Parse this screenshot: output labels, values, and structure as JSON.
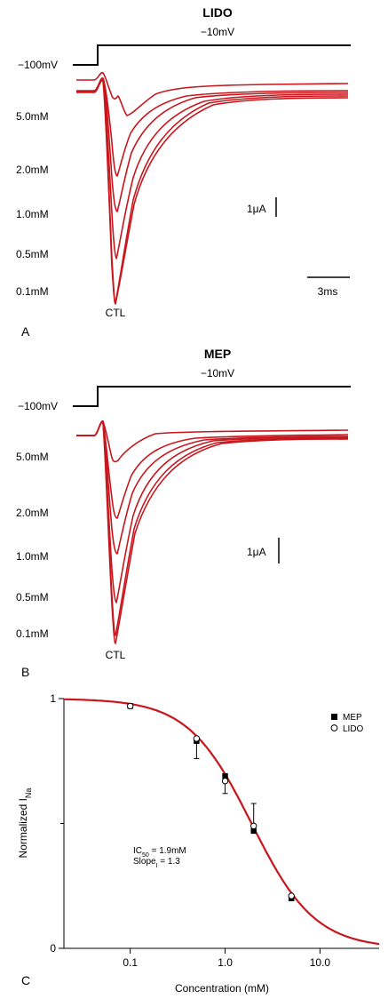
{
  "panel_a": {
    "title": "LIDO",
    "step_label": "−10mV",
    "hold_label": "−100mV",
    "conc_labels": [
      "5.0mM",
      "2.0mM",
      "1.0mM",
      "0.5mM",
      "0.1mM"
    ],
    "ctl_label": "CTL",
    "current_scale": "1μA",
    "time_scale": "3ms",
    "panel_letter": "A"
  },
  "panel_b": {
    "title": "MEP",
    "step_label": "−10mV",
    "hold_label": "−100mV",
    "conc_labels": [
      "5.0mM",
      "2.0mM",
      "1.0mM",
      "0.5mM",
      "0.1mM"
    ],
    "ctl_label": "CTL",
    "current_scale": "1μA",
    "panel_letter": "B"
  },
  "panel_c": {
    "panel_letter": "C",
    "y_label": "Normalized I",
    "y_label_sub": "Na",
    "x_label": "Concentration (mM)",
    "ic50_text": "IC",
    "ic50_sub": "50",
    "ic50_value": " = 1.9mM",
    "slope_text": "Slope",
    "slope_sub": "I",
    "slope_value": " = 1.3",
    "legend": [
      {
        "name": "MEP",
        "marker": "filled-square"
      },
      {
        "name": "LIDO",
        "marker": "open-circle"
      }
    ]
  },
  "chart_data": {
    "type": "scatter",
    "x_scale": "log",
    "xlim": [
      0.02,
      42
    ],
    "ylim": [
      0,
      1
    ],
    "x_tick_labels": [
      "0.1",
      "1.0",
      "10.0"
    ],
    "x_tick_values": [
      0.1,
      1.0,
      10.0
    ],
    "y_tick_labels": [
      "0",
      "1"
    ],
    "y_tick_values": [
      0,
      1
    ],
    "xlabel": "Concentration (mM)",
    "ylabel": "Normalized INa",
    "legend_position": "top-right",
    "series": [
      {
        "name": "MEP",
        "marker": "filled-square",
        "x": [
          0.1,
          0.5,
          1.0,
          2.0,
          5.0
        ],
        "y": [
          0.97,
          0.83,
          0.69,
          0.47,
          0.2
        ]
      },
      {
        "name": "LIDO",
        "marker": "open-circle",
        "x": [
          0.1,
          0.5,
          1.0,
          2.0,
          5.0
        ],
        "y": [
          0.97,
          0.84,
          0.67,
          0.49,
          0.21
        ]
      }
    ],
    "error_bars": [
      {
        "x": 0.5,
        "y": 0.83,
        "lower": 0.76,
        "upper": 0.83
      },
      {
        "x": 1.0,
        "y": 0.68,
        "lower": 0.62,
        "upper": 0.68
      },
      {
        "x": 2.0,
        "y": 0.48,
        "lower": 0.48,
        "upper": 0.58
      }
    ],
    "fit": {
      "ic50": 1.9,
      "slope": 1.3
    },
    "colors": {
      "fit": "#c8161d",
      "markers": "#000000"
    }
  }
}
